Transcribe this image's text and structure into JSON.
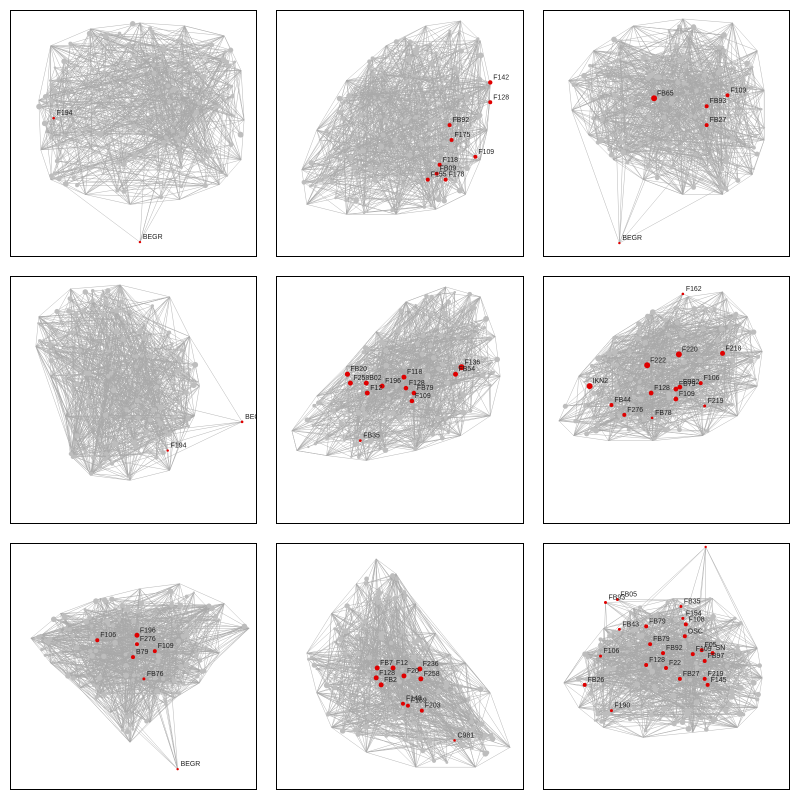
{
  "colors": {
    "edge": "#a9a9a9",
    "bg_node": "#bdbdbd",
    "highlight": "#e00000",
    "label": "#222222",
    "frame": "#000000"
  },
  "panels": [
    {
      "id": "p1",
      "highlight_labels": [
        "F194",
        "BEGR"
      ]
    },
    {
      "id": "p2",
      "highlight_labels": [
        "F142",
        "F128",
        "FB92",
        "F175",
        "F118",
        "FB09",
        "F155",
        "F178",
        "F109"
      ]
    },
    {
      "id": "p3",
      "highlight_labels": [
        "FB65",
        "F109",
        "FB93",
        "FB27",
        "BEGR"
      ]
    },
    {
      "id": "p4",
      "highlight_labels": [
        "BEGR",
        "F194"
      ]
    },
    {
      "id": "p5",
      "highlight_labels": [
        "FB20",
        "F258",
        "B02",
        "F196",
        "F12",
        "F118",
        "F128",
        "FB79",
        "F109",
        "F136",
        "FB54",
        "FB35"
      ]
    },
    {
      "id": "p6",
      "highlight_labels": [
        "F162",
        "F218",
        "F222",
        "F220",
        "IKN2",
        "F106",
        "F128",
        "FB79",
        "FB92",
        "F109",
        "FB44",
        "F276",
        "FB78",
        "F219"
      ]
    },
    {
      "id": "p7",
      "highlight_labels": [
        "F196",
        "F106",
        "F276",
        "F109",
        "B79",
        "FB76",
        "BEGR"
      ]
    },
    {
      "id": "p8",
      "highlight_labels": [
        "F12",
        "FB7",
        "F236",
        "F128",
        "F258",
        "F20",
        "FB2",
        "F148",
        "F169",
        "F203",
        "C981"
      ]
    },
    {
      "id": "p9",
      "highlight_labels": [
        "BEGR",
        "FB05",
        "FB93",
        "FB35",
        "F154",
        "FB43",
        "FB79",
        "F108",
        "OSC",
        "F106",
        "FB79",
        "F05",
        "FB92",
        "F109",
        "SN",
        "FB97",
        "F128",
        "F22",
        "FB27",
        "F219",
        "FB26",
        "F145",
        "F190"
      ]
    }
  ]
}
